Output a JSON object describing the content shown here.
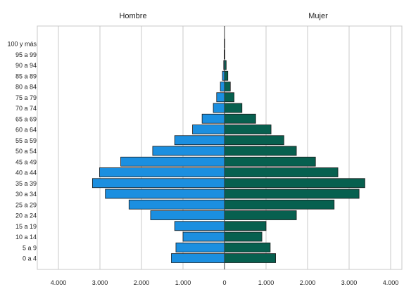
{
  "chart_data": {
    "type": "bar",
    "subtype": "population-pyramid",
    "orientation": "horizontal",
    "panels": [
      "Hombre",
      "Mujer"
    ],
    "categories": [
      "0 a 4",
      "5 a 9",
      "10 a 14",
      "15 a 19",
      "20 a 24",
      "25 a 29",
      "30 a 34",
      "35 a 39",
      "40 a 44",
      "45 a 49",
      "50 a 54",
      "55 a 59",
      "60 a 64",
      "65 a 69",
      "70 a 74",
      "75 a 79",
      "80 a 84",
      "85 a 89",
      "90 a 94",
      "95 a 99",
      "100 y más"
    ],
    "series": [
      {
        "name": "Hombre",
        "color": "#1b8fe0",
        "values": [
          1280,
          1170,
          1000,
          1200,
          1780,
          2300,
          2870,
          3180,
          3010,
          2500,
          1730,
          1200,
          770,
          540,
          270,
          190,
          100,
          50,
          20,
          8,
          3
        ]
      },
      {
        "name": "Mujer",
        "color": "#07604f",
        "values": [
          1230,
          1100,
          900,
          1000,
          1730,
          2640,
          3240,
          3380,
          2730,
          2190,
          1730,
          1430,
          1120,
          750,
          420,
          230,
          140,
          80,
          40,
          10,
          3
        ]
      }
    ],
    "xlim": [
      -4500,
      4500
    ],
    "x_ticks": [
      -4000,
      -3000,
      -2000,
      -1000,
      0,
      1000,
      2000,
      3000,
      4000
    ],
    "x_tick_labels": [
      "4.000",
      "3.000",
      "2.000",
      "1.000",
      "0",
      "1.000",
      "2.000",
      "3.000",
      "4.000"
    ],
    "grid": true,
    "legend": "none",
    "title": "",
    "xlabel": "",
    "ylabel": ""
  }
}
